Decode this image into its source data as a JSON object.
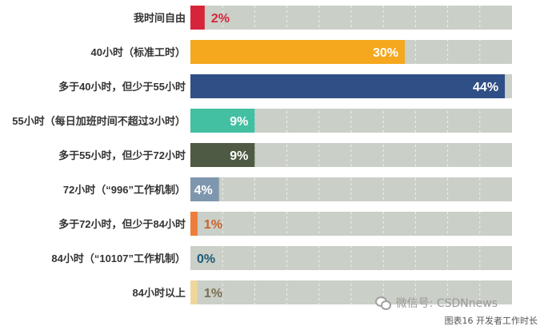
{
  "chart_data": {
    "type": "bar",
    "orientation": "horizontal",
    "categories": [
      "我时间自由",
      "40小时（标准工时）",
      "多于40小时，但少于55小时",
      "55小时（每日加班时间不超过3小时）",
      "多于55小时，但少于72小时",
      "72小时（“996”工作机制）",
      "多于72小时，但少于84小时",
      "84小时（“10107”工作机制）",
      "84小时以上"
    ],
    "values": [
      2,
      30,
      44,
      9,
      9,
      4,
      1,
      0,
      1
    ],
    "value_labels": [
      "2%",
      "30%",
      "44%",
      "9%",
      "9%",
      "4%",
      "1%",
      "0%",
      "1%"
    ],
    "colors": [
      "#d6253a",
      "#f5a81d",
      "#2f4f86",
      "#43bfa2",
      "#4e5a43",
      "#7f97ae",
      "#ee7d3b",
      "#1a5a76",
      "#efd79b"
    ],
    "label_colors": [
      "#d6253a",
      "#ffffff",
      "#ffffff",
      "#ffffff",
      "#ffffff",
      "#ffffff",
      "#c8622d",
      "#1a5a76",
      "#7a6e52"
    ],
    "label_inside": [
      false,
      true,
      true,
      true,
      true,
      true,
      false,
      false,
      false
    ],
    "background_bar_color": "#cacfc7",
    "xlim": [
      0,
      45
    ],
    "grid": true
  },
  "footer": {
    "watermark": "微信号: CSDNnews",
    "caption": "图表16 开发者工作时长"
  }
}
